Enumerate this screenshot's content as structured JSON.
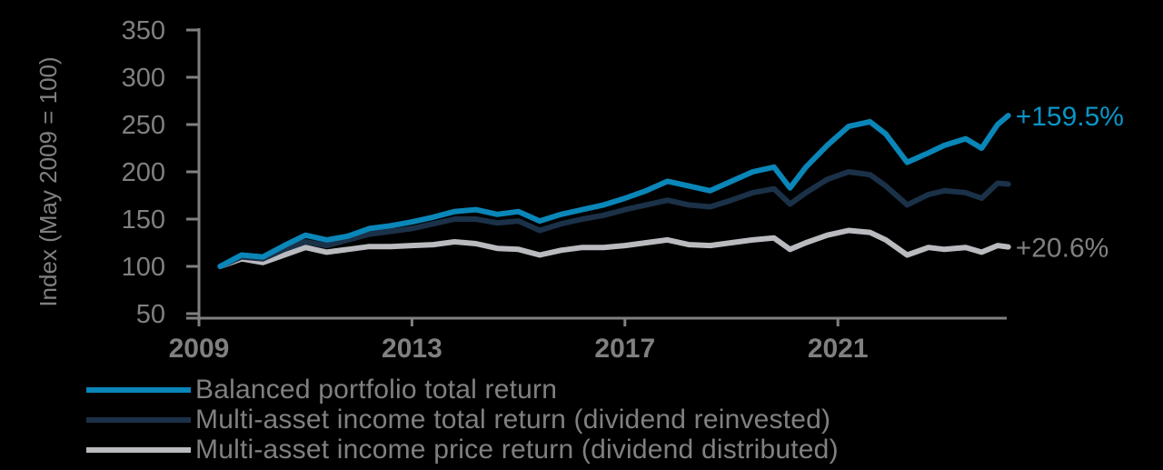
{
  "chart_data": {
    "type": "line",
    "title": "",
    "xlabel": "",
    "ylabel": "Index (May 2009 = 100)",
    "ylim": [
      50,
      350
    ],
    "yticks": [
      50,
      100,
      150,
      200,
      250,
      300,
      350
    ],
    "xticks": [
      "2009",
      "2013",
      "2017",
      "2021"
    ],
    "grid": false,
    "legend_position": "bottom",
    "x": [
      2009.4,
      2009.8,
      2010.2,
      2010.6,
      2011.0,
      2011.4,
      2011.8,
      2012.2,
      2012.6,
      2013.0,
      2013.4,
      2013.8,
      2014.2,
      2014.6,
      2015.0,
      2015.4,
      2015.8,
      2016.2,
      2016.6,
      2017.0,
      2017.4,
      2017.8,
      2018.2,
      2018.6,
      2019.0,
      2019.4,
      2019.8,
      2020.1,
      2020.4,
      2020.8,
      2021.2,
      2021.6,
      2021.9,
      2022.3,
      2022.7,
      2023.0,
      2023.4,
      2023.7,
      2024.0,
      2024.2
    ],
    "series": [
      {
        "name": "Balanced portfolio total return",
        "color": "#0a86b8",
        "values": [
          100,
          112,
          110,
          122,
          133,
          128,
          132,
          140,
          143,
          147,
          152,
          158,
          160,
          155,
          158,
          148,
          155,
          160,
          165,
          172,
          180,
          190,
          185,
          180,
          190,
          200,
          205,
          183,
          205,
          228,
          248,
          253,
          240,
          210,
          220,
          228,
          235,
          225,
          250,
          259.5
        ]
      },
      {
        "name": "Multi-asset income total return (dividend reinvested)",
        "color": "#1b3148",
        "values": [
          100,
          110,
          108,
          118,
          126,
          122,
          128,
          134,
          137,
          140,
          145,
          150,
          150,
          146,
          148,
          138,
          145,
          150,
          154,
          160,
          165,
          170,
          165,
          163,
          170,
          178,
          182,
          166,
          178,
          192,
          200,
          197,
          185,
          165,
          176,
          180,
          178,
          172,
          188,
          187
        ]
      },
      {
        "name": "Multi-asset income price return (dividend distributed)",
        "color": "#b9bbbf",
        "values": [
          100,
          108,
          104,
          112,
          120,
          115,
          118,
          121,
          121,
          122,
          123,
          126,
          124,
          119,
          118,
          112,
          117,
          120,
          120,
          122,
          125,
          128,
          123,
          122,
          125,
          128,
          130,
          118,
          125,
          133,
          138,
          136,
          128,
          112,
          120,
          118,
          120,
          115,
          122,
          120.6
        ]
      }
    ],
    "annotations": [
      {
        "text": "+159.5%",
        "series": 0,
        "color": "#0a94c6"
      },
      {
        "text": "+20.6%",
        "series": 2,
        "color": "#808080"
      }
    ]
  },
  "axis": {
    "color": "#808080"
  },
  "legend": {
    "items": [
      {
        "label": "Balanced portfolio total return",
        "color": "#0a86b8"
      },
      {
        "label": "Multi-asset income total return (dividend reinvested)",
        "color": "#1b3148"
      },
      {
        "label": "Multi-asset income price return (dividend distributed)",
        "color": "#b9bbbf"
      }
    ]
  }
}
